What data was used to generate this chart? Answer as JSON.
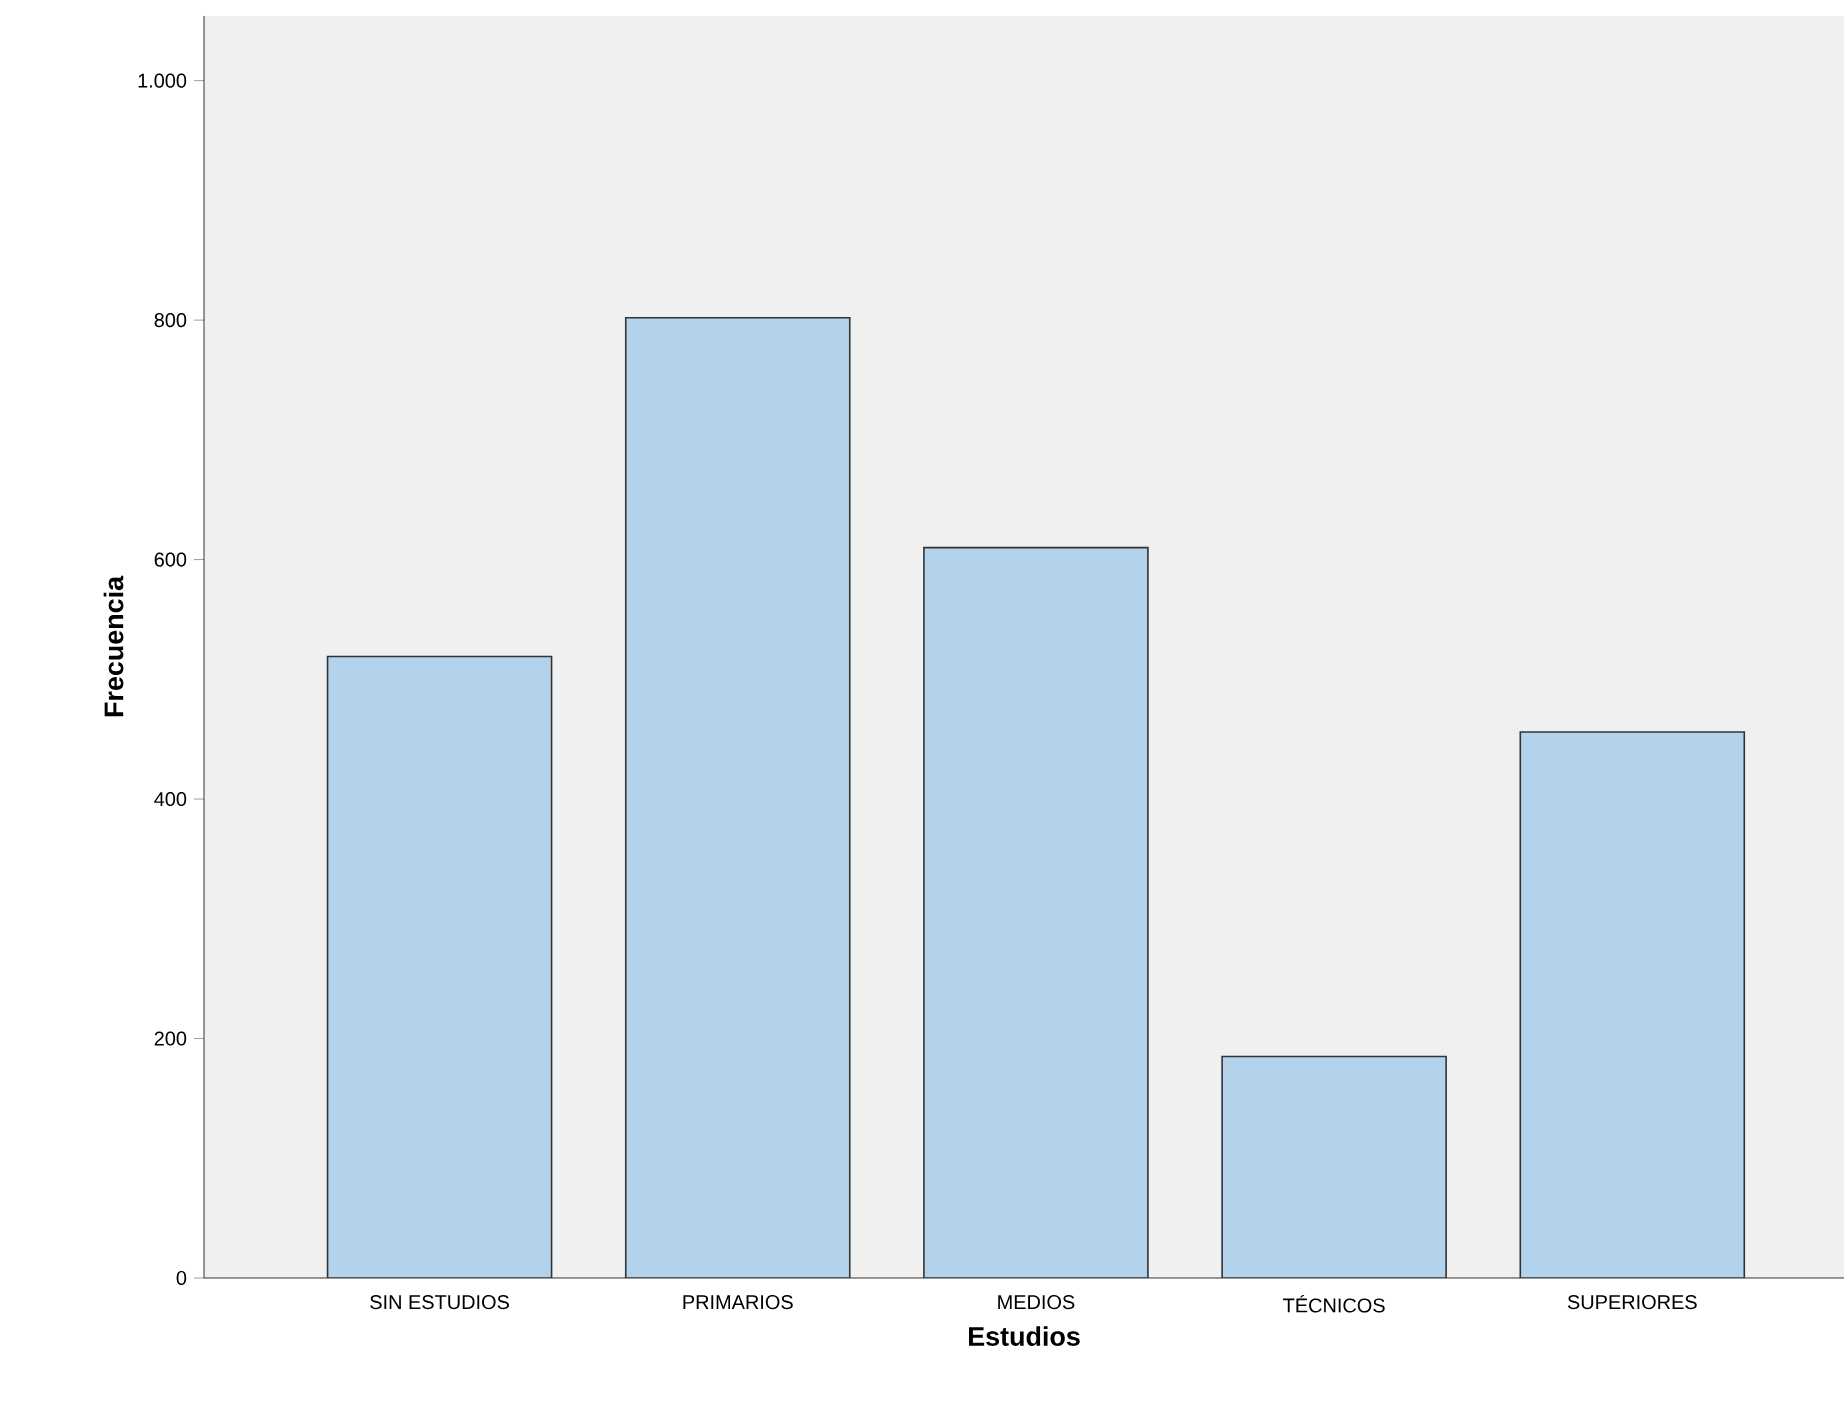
{
  "chart_data": {
    "type": "bar",
    "xlabel": "Estudios",
    "ylabel": "Frecuencia",
    "categories": [
      "SIN ESTUDIOS",
      "PRIMARIOS",
      "MEDIOS",
      "TÉCNICOS",
      "SUPERIORES"
    ],
    "values": [
      519,
      802,
      610,
      185,
      456
    ],
    "color": "#b3d3ec",
    "ylim": [
      0,
      1054
    ],
    "yticks": [
      0,
      200,
      400,
      600,
      800,
      {
        "value": 1000,
        "label": "1.000"
      }
    ]
  }
}
